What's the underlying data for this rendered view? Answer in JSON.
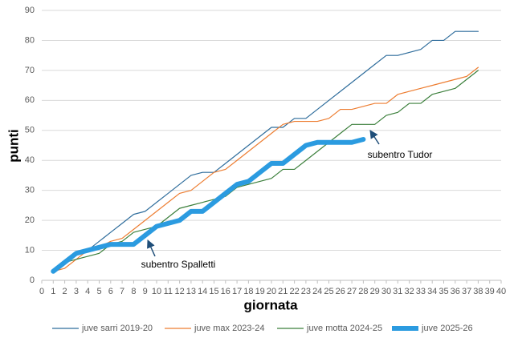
{
  "chart_data": {
    "type": "line",
    "x_label": "giornata",
    "y_label": "punti",
    "x": [
      1,
      2,
      3,
      4,
      5,
      6,
      7,
      8,
      9,
      10,
      11,
      12,
      13,
      14,
      15,
      16,
      17,
      18,
      19,
      20,
      21,
      22,
      23,
      24,
      25,
      26,
      27,
      28,
      29,
      30,
      31,
      32,
      33,
      34,
      35,
      36,
      37,
      38
    ],
    "series": [
      {
        "name": "juve sarri 2019-20",
        "color": "#2f6d9c",
        "width": 1.2,
        "values": [
          3,
          6,
          9,
          10,
          13,
          16,
          19,
          22,
          23,
          26,
          29,
          32,
          35,
          36,
          36,
          39,
          42,
          45,
          48,
          51,
          51,
          54,
          54,
          57,
          60,
          63,
          66,
          69,
          72,
          75,
          75,
          76,
          77,
          80,
          80,
          83,
          83,
          83
        ]
      },
      {
        "name": "juve max 2023-24",
        "color": "#ed7d31",
        "width": 1.2,
        "values": [
          3,
          4,
          7,
          10,
          11,
          13,
          14,
          17,
          20,
          23,
          26,
          29,
          30,
          33,
          36,
          37,
          40,
          43,
          46,
          49,
          52,
          53,
          53,
          53,
          54,
          57,
          57,
          58,
          59,
          59,
          62,
          63,
          64,
          65,
          66,
          67,
          68,
          71
        ]
      },
      {
        "name": "juve motta 2024-25",
        "color": "#3b7f3b",
        "width": 1.2,
        "values": [
          3,
          6,
          7,
          8,
          9,
          12,
          13,
          16,
          17,
          18,
          21,
          24,
          25,
          26,
          27,
          28,
          31,
          32,
          33,
          34,
          37,
          37,
          40,
          43,
          46,
          49,
          52,
          52,
          52,
          55,
          56,
          59,
          59,
          62,
          63,
          64,
          67,
          70
        ]
      },
      {
        "name": "juve 2025-26",
        "color": "#2b9be0",
        "width": 6,
        "values": [
          3,
          6,
          9,
          10,
          11,
          12,
          12,
          12,
          15,
          18,
          19,
          20,
          23,
          23,
          26,
          29,
          32,
          33,
          36,
          39,
          39,
          42,
          45,
          46,
          46,
          46,
          46,
          47,
          null,
          null,
          null,
          null,
          null,
          null,
          null,
          null,
          null,
          null
        ]
      }
    ],
    "annotations": [
      "subentro Spalletti",
      "subentro Tudor"
    ],
    "xlim": [
      0,
      40
    ],
    "xticks": [
      0,
      1,
      2,
      3,
      4,
      5,
      6,
      7,
      8,
      9,
      10,
      11,
      12,
      13,
      14,
      15,
      16,
      17,
      18,
      19,
      20,
      21,
      22,
      23,
      24,
      25,
      26,
      27,
      28,
      29,
      30,
      31,
      32,
      33,
      34,
      35,
      36,
      37,
      38,
      39,
      40
    ],
    "ylim": [
      0,
      90
    ],
    "yticks": [
      0,
      10,
      20,
      30,
      40,
      50,
      60,
      70,
      80,
      90
    ],
    "grid": true,
    "legend": "bottom"
  }
}
